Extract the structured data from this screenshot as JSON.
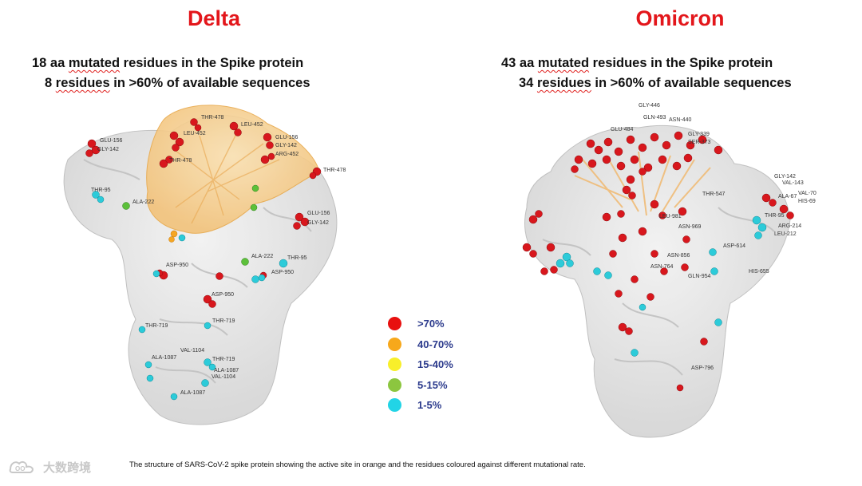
{
  "delta": {
    "title": "Delta",
    "stat_line1_num": "18 aa",
    "stat_line1_word": "mutated",
    "stat_line1_rest": "residues in the Spike protein",
    "stat_line2_num": "8",
    "stat_line2_word": "residues",
    "stat_line2_rest": "in >60% of available sequences",
    "residue_labels": [
      "GLU-156",
      "GLY-142",
      "THR-478",
      "LEU-452",
      "THR-478",
      "LEU-452",
      "GLU-156",
      "GLY-142",
      "ARG-452",
      "THR-478",
      "THR-95",
      "ALA-222",
      "GLU-156",
      "GLY-142",
      "ALA-222",
      "THR-95",
      "ASP-950",
      "ASP-950",
      "ASP-950",
      "THR-719",
      "THR-719",
      "VAL-1104",
      "ALA-1087",
      "THR-719",
      "ALA-1087",
      "VAL-1104",
      "ALA-1087"
    ]
  },
  "omicron": {
    "title": "Omicron",
    "stat_line1_num": "43 aa",
    "stat_line1_word": "mutated",
    "stat_line1_rest": "residues in the Spike protein",
    "stat_line2_num": "34",
    "stat_line2_word": "residues",
    "stat_line2_rest": "in >60% of available sequences",
    "residue_labels": [
      "GLY-446",
      "GLN-493",
      "ASN-440",
      "GLU-484",
      "GLY-339",
      "SER-373",
      "THR-547",
      "GLY-142",
      "VAL-143",
      "VAL-70",
      "ALA-67",
      "HIS-69",
      "THR-95",
      "LEU-981",
      "ASN-969",
      "ARG-214",
      "LEU-212",
      "ASP-614",
      "ASN-856",
      "ASN-764",
      "GLN-954",
      "HIS-655",
      "ASP-796"
    ]
  },
  "legend": [
    {
      "label": ">70%",
      "color": "#e8100f"
    },
    {
      "label": "40-70%",
      "color": "#f7a81b"
    },
    {
      "label": "15-40%",
      "color": "#f8ef2a"
    },
    {
      "label": "5-15%",
      "color": "#8cc63f"
    },
    {
      "label": "1-5%",
      "color": "#22d4e6"
    }
  ],
  "caption": "The structure of SARS-CoV-2 spike protein showing the active site in orange and the residues coloured against different mutational rate.",
  "watermark": "大数跨境"
}
